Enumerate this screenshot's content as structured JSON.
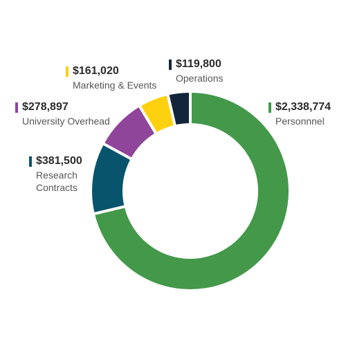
{
  "chart_data": {
    "type": "pie",
    "donut": true,
    "legend": "labels placed around the ring",
    "slices": [
      {
        "label": "Personnnel",
        "value_label": "$2,338,774",
        "value": 2338774,
        "color": "#43984a"
      },
      {
        "label": "Research Contracts",
        "value_label": "$381,500",
        "value": 381500,
        "color": "#08546d"
      },
      {
        "label": "University Overhead",
        "value_label": "$278,897",
        "value": 278897,
        "color": "#8e459a"
      },
      {
        "label": "Marketing & Events",
        "value_label": "$161,020",
        "value": 161020,
        "color": "#fdd10f"
      },
      {
        "label": "Operations",
        "value_label": "$119,800",
        "value": 119800,
        "color": "#13253a"
      }
    ]
  }
}
